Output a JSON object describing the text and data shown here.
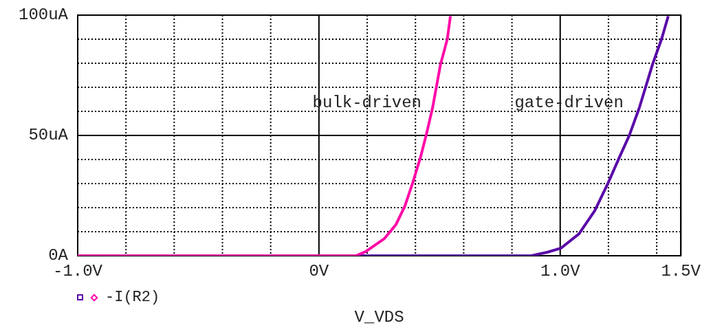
{
  "chart_data": {
    "type": "line",
    "xlabel": "V_VDS",
    "xlim": [
      -1,
      1.5
    ],
    "xticks": [
      {
        "value": -1,
        "label": "-1.0V"
      },
      {
        "value": -0.8,
        "label": null
      },
      {
        "value": -0.6,
        "label": null
      },
      {
        "value": -0.4,
        "label": null
      },
      {
        "value": -0.2,
        "label": null
      },
      {
        "value": 0,
        "label": "0V"
      },
      {
        "value": 0.2,
        "label": null
      },
      {
        "value": 0.4,
        "label": null
      },
      {
        "value": 0.6,
        "label": null
      },
      {
        "value": 0.8,
        "label": null
      },
      {
        "value": 1,
        "label": "1.0V"
      },
      {
        "value": 1.2,
        "label": null
      },
      {
        "value": 1.4,
        "label": null
      },
      {
        "value": 1.5,
        "label": "1.5V"
      }
    ],
    "ylim": [
      0,
      100
    ],
    "yticks": [
      {
        "value": 0,
        "label": "0A"
      },
      {
        "value": 10,
        "label": null
      },
      {
        "value": 20,
        "label": null
      },
      {
        "value": 30,
        "label": null
      },
      {
        "value": 40,
        "label": null
      },
      {
        "value": 50,
        "label": "50uA"
      },
      {
        "value": 60,
        "label": null
      },
      {
        "value": 70,
        "label": null
      },
      {
        "value": 80,
        "label": null
      },
      {
        "value": 90,
        "label": null
      },
      {
        "value": 100,
        "label": "100uA"
      }
    ],
    "grid": true,
    "legend": "bottom left",
    "line_style": "solid",
    "series": [
      {
        "color": "#5a0aa8",
        "x": [
          0.153,
          0.88,
          0.948,
          1.004,
          1.078,
          1.143,
          1.198,
          1.244,
          1.286,
          1.328,
          1.383,
          1.42,
          1.448
        ],
        "values": [
          0,
          0,
          1.5,
          3.2,
          9.1,
          18.7,
          30.1,
          40.6,
          49.9,
          61.5,
          79.6,
          90,
          99.6
        ]
      },
      {
        "name": "-I(R2)",
        "color": "#ff0aa8",
        "x": [
          -1,
          0.153,
          0.193,
          0.272,
          0.319,
          0.356,
          0.388,
          0.42,
          0.444,
          0.471,
          0.504,
          0.532,
          0.545
        ],
        "values": [
          0,
          0,
          1.7,
          7.2,
          12.9,
          20.6,
          30.1,
          40.6,
          49.9,
          61.5,
          79.6,
          90,
          99.6
        ]
      }
    ],
    "annotations": [
      "bulk-driven",
      "gate-driven"
    ]
  }
}
